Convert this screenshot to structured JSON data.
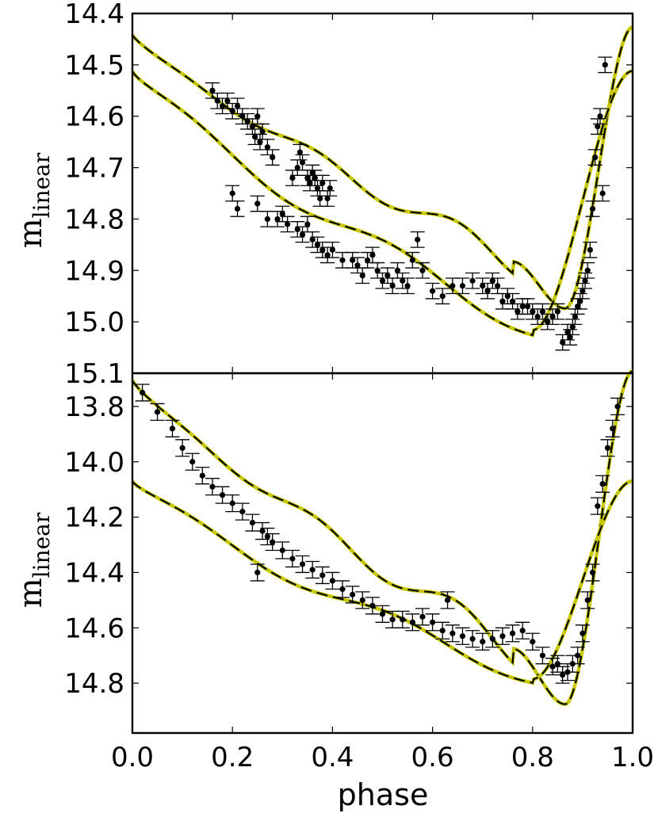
{
  "figure": {
    "xlabel": "phase",
    "ylabel_main": "m",
    "ylabel_sub": "linear",
    "x_ticks": [
      "0.0",
      "0.2",
      "0.4",
      "0.6",
      "0.8",
      "1.0"
    ]
  },
  "chart_data": [
    {
      "type": "scatter",
      "panel": "top",
      "xlim": [
        0.0,
        1.0
      ],
      "ylim": [
        15.1,
        14.4
      ],
      "y_inverted": true,
      "y_ticks": [
        "14.4",
        "14.5",
        "14.6",
        "14.7",
        "14.8",
        "14.9",
        "15.0",
        "15.1"
      ],
      "errorbar_sigma": 0.015,
      "points": [
        [
          0.16,
          14.55
        ],
        [
          0.17,
          14.57
        ],
        [
          0.18,
          14.58
        ],
        [
          0.19,
          14.57
        ],
        [
          0.2,
          14.59
        ],
        [
          0.21,
          14.58
        ],
        [
          0.22,
          14.6
        ],
        [
          0.23,
          14.61
        ],
        [
          0.24,
          14.62
        ],
        [
          0.245,
          14.64
        ],
        [
          0.25,
          14.6
        ],
        [
          0.255,
          14.65
        ],
        [
          0.26,
          14.63
        ],
        [
          0.27,
          14.66
        ],
        [
          0.28,
          14.68
        ],
        [
          0.2,
          14.75
        ],
        [
          0.21,
          14.78
        ],
        [
          0.25,
          14.77
        ],
        [
          0.27,
          14.8
        ],
        [
          0.29,
          14.8
        ],
        [
          0.3,
          14.79
        ],
        [
          0.31,
          14.81
        ],
        [
          0.32,
          14.72
        ],
        [
          0.33,
          14.7
        ],
        [
          0.335,
          14.67
        ],
        [
          0.34,
          14.69
        ],
        [
          0.35,
          14.72
        ],
        [
          0.355,
          14.73
        ],
        [
          0.36,
          14.71
        ],
        [
          0.365,
          14.72
        ],
        [
          0.37,
          14.74
        ],
        [
          0.375,
          14.76
        ],
        [
          0.38,
          14.73
        ],
        [
          0.39,
          14.76
        ],
        [
          0.395,
          14.74
        ],
        [
          0.33,
          14.82
        ],
        [
          0.34,
          14.83
        ],
        [
          0.35,
          14.81
        ],
        [
          0.36,
          14.84
        ],
        [
          0.37,
          14.85
        ],
        [
          0.38,
          14.86
        ],
        [
          0.39,
          14.87
        ],
        [
          0.4,
          14.86
        ],
        [
          0.42,
          14.88
        ],
        [
          0.44,
          14.88
        ],
        [
          0.45,
          14.89
        ],
        [
          0.46,
          14.91
        ],
        [
          0.47,
          14.88
        ],
        [
          0.48,
          14.87
        ],
        [
          0.49,
          14.9
        ],
        [
          0.5,
          14.92
        ],
        [
          0.51,
          14.91
        ],
        [
          0.52,
          14.93
        ],
        [
          0.53,
          14.9
        ],
        [
          0.54,
          14.92
        ],
        [
          0.55,
          14.93
        ],
        [
          0.56,
          14.88
        ],
        [
          0.57,
          14.84
        ],
        [
          0.58,
          14.9
        ],
        [
          0.6,
          14.94
        ],
        [
          0.62,
          14.95
        ],
        [
          0.64,
          14.93
        ],
        [
          0.66,
          14.93
        ],
        [
          0.68,
          14.92
        ],
        [
          0.7,
          14.93
        ],
        [
          0.71,
          14.94
        ],
        [
          0.72,
          14.92
        ],
        [
          0.73,
          14.93
        ],
        [
          0.74,
          14.96
        ],
        [
          0.75,
          14.95
        ],
        [
          0.76,
          14.96
        ],
        [
          0.77,
          14.98
        ],
        [
          0.78,
          14.97
        ],
        [
          0.79,
          14.97
        ],
        [
          0.8,
          14.98
        ],
        [
          0.81,
          14.99
        ],
        [
          0.82,
          14.98
        ],
        [
          0.83,
          15.0
        ],
        [
          0.84,
          14.99
        ],
        [
          0.85,
          14.98
        ],
        [
          0.86,
          15.04
        ],
        [
          0.87,
          15.02
        ],
        [
          0.875,
          15.03
        ],
        [
          0.88,
          15.01
        ],
        [
          0.885,
          14.99
        ],
        [
          0.89,
          14.97
        ],
        [
          0.895,
          14.96
        ],
        [
          0.9,
          14.94
        ],
        [
          0.905,
          14.92
        ],
        [
          0.91,
          14.9
        ],
        [
          0.915,
          14.86
        ],
        [
          0.92,
          14.78
        ],
        [
          0.925,
          14.68
        ],
        [
          0.93,
          14.62
        ],
        [
          0.935,
          14.6
        ],
        [
          0.94,
          14.75
        ],
        [
          0.945,
          14.5
        ]
      ]
    },
    {
      "type": "scatter",
      "panel": "bottom",
      "xlim": [
        0.0,
        1.0
      ],
      "ylim": [
        14.98,
        13.68
      ],
      "y_inverted": true,
      "y_ticks": [
        "13.8",
        "14.0",
        "14.2",
        "14.4",
        "14.6",
        "14.8"
      ],
      "errorbar_sigma": 0.03,
      "points": [
        [
          0.02,
          13.75
        ],
        [
          0.05,
          13.82
        ],
        [
          0.08,
          13.88
        ],
        [
          0.1,
          13.95
        ],
        [
          0.12,
          14.0
        ],
        [
          0.14,
          14.05
        ],
        [
          0.16,
          14.09
        ],
        [
          0.18,
          14.12
        ],
        [
          0.2,
          14.15
        ],
        [
          0.22,
          14.18
        ],
        [
          0.24,
          14.22
        ],
        [
          0.26,
          14.25
        ],
        [
          0.27,
          14.27
        ],
        [
          0.28,
          14.29
        ],
        [
          0.3,
          14.32
        ],
        [
          0.32,
          14.35
        ],
        [
          0.34,
          14.37
        ],
        [
          0.36,
          14.39
        ],
        [
          0.38,
          14.41
        ],
        [
          0.4,
          14.43
        ],
        [
          0.42,
          14.46
        ],
        [
          0.44,
          14.48
        ],
        [
          0.46,
          14.5
        ],
        [
          0.48,
          14.52
        ],
        [
          0.5,
          14.55
        ],
        [
          0.52,
          14.57
        ],
        [
          0.54,
          14.57
        ],
        [
          0.56,
          14.58
        ],
        [
          0.58,
          14.56
        ],
        [
          0.6,
          14.58
        ],
        [
          0.62,
          14.61
        ],
        [
          0.63,
          14.5
        ],
        [
          0.64,
          14.62
        ],
        [
          0.66,
          14.63
        ],
        [
          0.68,
          14.64
        ],
        [
          0.7,
          14.65
        ],
        [
          0.72,
          14.64
        ],
        [
          0.74,
          14.63
        ],
        [
          0.76,
          14.62
        ],
        [
          0.78,
          14.61
        ],
        [
          0.8,
          14.65
        ],
        [
          0.82,
          14.7
        ],
        [
          0.84,
          14.74
        ],
        [
          0.85,
          14.73
        ],
        [
          0.86,
          14.77
        ],
        [
          0.87,
          14.76
        ],
        [
          0.88,
          14.73
        ],
        [
          0.89,
          14.7
        ],
        [
          0.9,
          14.62
        ],
        [
          0.91,
          14.5
        ],
        [
          0.92,
          14.4
        ],
        [
          0.93,
          14.16
        ],
        [
          0.94,
          14.08
        ],
        [
          0.95,
          13.95
        ],
        [
          0.96,
          13.88
        ],
        [
          0.97,
          13.8
        ],
        [
          0.25,
          14.4
        ]
      ]
    }
  ]
}
